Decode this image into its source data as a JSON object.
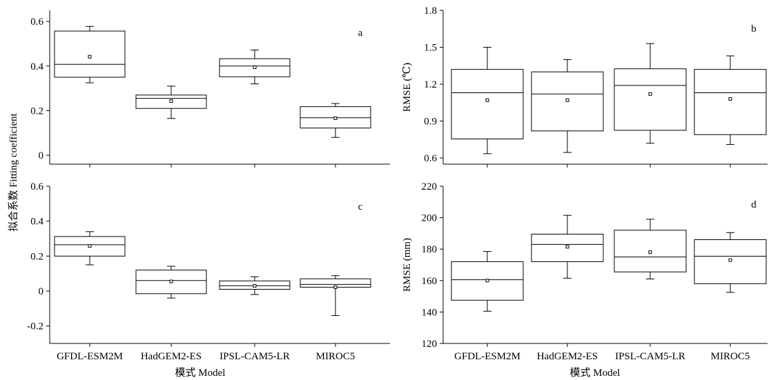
{
  "figure": {
    "left_ylabel": "拟合系数 Fitting coefficient",
    "left_xlabel": "模式 Model",
    "right_xlabel": "模式 Model"
  },
  "chart_data": [
    {
      "type": "boxplot",
      "panel": "a",
      "categories": [
        "GFDL-ESM2M",
        "HadGEM2-ES",
        "IPSL-CAM5-LR",
        "MIROC5"
      ],
      "ylim": [
        -0.04,
        0.65
      ],
      "yticks": [
        0,
        0.2,
        0.4,
        0.6
      ],
      "ytick_labels": [
        "0",
        "0.2",
        "0.4",
        "0.6"
      ],
      "boxes": [
        {
          "whisker_low": 0.325,
          "q1": 0.35,
          "median": 0.408,
          "q3": 0.557,
          "whisker_high": 0.578,
          "mean": 0.442
        },
        {
          "whisker_low": 0.165,
          "q1": 0.21,
          "median": 0.255,
          "q3": 0.27,
          "whisker_high": 0.31,
          "mean": 0.243
        },
        {
          "whisker_low": 0.32,
          "q1": 0.352,
          "median": 0.4,
          "q3": 0.433,
          "whisker_high": 0.472,
          "mean": 0.395
        },
        {
          "whisker_low": 0.08,
          "q1": 0.122,
          "median": 0.168,
          "q3": 0.218,
          "whisker_high": 0.232,
          "mean": 0.166
        }
      ]
    },
    {
      "type": "boxplot",
      "panel": "b",
      "ylabel": "RMSE (℃)",
      "categories": [
        "GFDL-ESM2M",
        "HadGEM2-ES",
        "IPSL-CAM5-LR",
        "MIROC5"
      ],
      "ylim": [
        0.55,
        1.8
      ],
      "yticks": [
        0.6,
        0.9,
        1.2,
        1.5,
        1.8
      ],
      "ytick_labels": [
        "0.6",
        "0.9",
        "1.2",
        "1.5",
        "1.8"
      ],
      "boxes": [
        {
          "whisker_low": 0.635,
          "q1": 0.755,
          "median": 1.13,
          "q3": 1.32,
          "whisker_high": 1.5,
          "mean": 1.07
        },
        {
          "whisker_low": 0.645,
          "q1": 0.82,
          "median": 1.12,
          "q3": 1.3,
          "whisker_high": 1.4,
          "mean": 1.07
        },
        {
          "whisker_low": 0.72,
          "q1": 0.825,
          "median": 1.19,
          "q3": 1.325,
          "whisker_high": 1.53,
          "mean": 1.12
        },
        {
          "whisker_low": 0.71,
          "q1": 0.79,
          "median": 1.13,
          "q3": 1.32,
          "whisker_high": 1.43,
          "mean": 1.08
        }
      ]
    },
    {
      "type": "boxplot",
      "panel": "c",
      "categories": [
        "GFDL-ESM2M",
        "HadGEM2-ES",
        "IPSL-CAM5-LR",
        "MIROC5"
      ],
      "xtick_labels": [
        "GFDL-ESM2M",
        "HadGEM2-ES",
        "IPSL-CAM5-LR",
        "MIROC5"
      ],
      "ylim": [
        -0.3,
        0.6
      ],
      "yticks": [
        -0.2,
        0,
        0.2,
        0.4,
        0.6
      ],
      "ytick_labels": [
        "-0.2",
        "0",
        "0.2",
        "0.4",
        "0.6"
      ],
      "boxes": [
        {
          "whisker_low": 0.15,
          "q1": 0.2,
          "median": 0.265,
          "q3": 0.312,
          "whisker_high": 0.34,
          "mean": 0.258
        },
        {
          "whisker_low": -0.04,
          "q1": -0.015,
          "median": 0.06,
          "q3": 0.12,
          "whisker_high": 0.142,
          "mean": 0.055
        },
        {
          "whisker_low": -0.02,
          "q1": 0.01,
          "median": 0.03,
          "q3": 0.058,
          "whisker_high": 0.082,
          "mean": 0.03
        },
        {
          "whisker_low": -0.14,
          "q1": 0.022,
          "median": 0.038,
          "q3": 0.07,
          "whisker_high": 0.088,
          "mean": 0.022
        }
      ]
    },
    {
      "type": "boxplot",
      "panel": "d",
      "ylabel": "RMSE (mm)",
      "categories": [
        "GFDL-ESM2M",
        "HadGEM2-ES",
        "IPSL-CAM5-LR",
        "MIROC5"
      ],
      "xtick_labels": [
        "GFDL-ESM2M",
        "HadGEM2-ES",
        "IPSL-CAM5-LR",
        "MIROC5"
      ],
      "ylim": [
        120,
        220
      ],
      "yticks": [
        120,
        140,
        160,
        180,
        200,
        220
      ],
      "ytick_labels": [
        "120",
        "140",
        "160",
        "180",
        "200",
        "220"
      ],
      "boxes": [
        {
          "whisker_low": 140.5,
          "q1": 147.5,
          "median": 160.5,
          "q3": 172,
          "whisker_high": 178.5,
          "mean": 160
        },
        {
          "whisker_low": 161.5,
          "q1": 172,
          "median": 183,
          "q3": 189.5,
          "whisker_high": 201.5,
          "mean": 181.5
        },
        {
          "whisker_low": 161,
          "q1": 165.5,
          "median": 175,
          "q3": 192,
          "whisker_high": 199,
          "mean": 178
        },
        {
          "whisker_low": 152.5,
          "q1": 158,
          "median": 175.5,
          "q3": 186,
          "whisker_high": 190.5,
          "mean": 173
        }
      ]
    }
  ]
}
